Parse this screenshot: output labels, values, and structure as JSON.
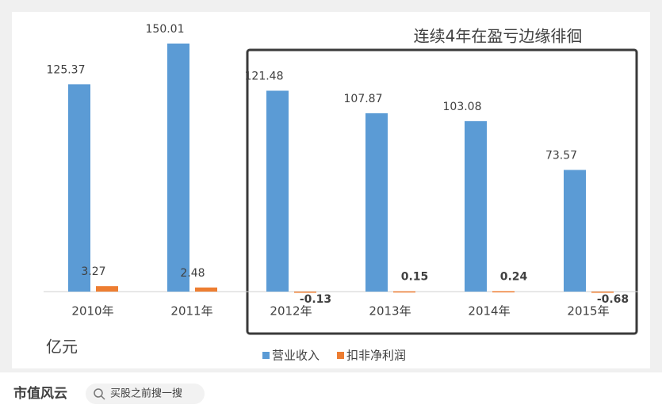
{
  "chart_data": {
    "type": "bar",
    "annotations": [
      "连续4年在盈亏边缘徘徊",
      "亿元"
    ],
    "categories": [
      "2010年",
      "2011年",
      "2012年",
      "2013年",
      "2014年",
      "2015年"
    ],
    "series": [
      {
        "name": "营业收入",
        "color": "#5b9bd5",
        "values": [
          125.37,
          150.01,
          121.48,
          107.87,
          103.08,
          73.57
        ]
      },
      {
        "name": "扣非净利润",
        "color": "#ed7d31",
        "values": [
          3.27,
          2.48,
          -0.13,
          0.15,
          0.24,
          -0.68
        ]
      }
    ],
    "ylim": [
      -5,
      160
    ]
  },
  "footer": {
    "logo": "市值风云",
    "search": "买股之前搜一搜"
  }
}
